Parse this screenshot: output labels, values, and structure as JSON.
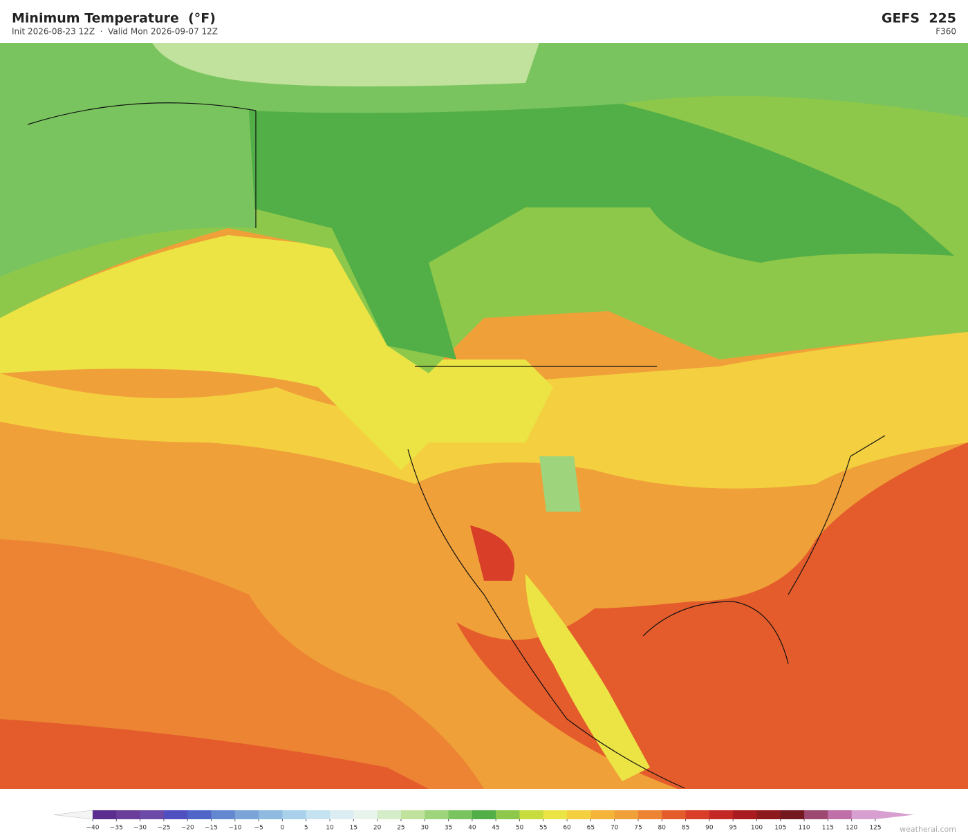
{
  "header": {
    "title": "Minimum Temperature  (°F)",
    "subtitle": "Init 2026-08-23 12Z  ·  Valid Mon 2026-09-07 12Z",
    "model": "GEFS  225",
    "forecast_hour": "F360"
  },
  "colorbar": {
    "ticks": [
      "−40",
      "−35",
      "−30",
      "−25",
      "−20",
      "−15",
      "−10",
      "−5",
      "0",
      "5",
      "10",
      "15",
      "20",
      "25",
      "30",
      "35",
      "40",
      "45",
      "50",
      "55",
      "60",
      "65",
      "70",
      "75",
      "80",
      "85",
      "90",
      "95",
      "100",
      "105",
      "110",
      "115",
      "120",
      "125"
    ],
    "colors": [
      "#5b2d8e",
      "#6a3d9a",
      "#6e4aa8",
      "#4f4fc0",
      "#4f66c8",
      "#6488d0",
      "#7ba4d8",
      "#8fbbe0",
      "#a8d0ea",
      "#c4e2f0",
      "#dcecf3",
      "#e8f3ec",
      "#d4ecc8",
      "#c0e29c",
      "#9ed47c",
      "#79c45e",
      "#52ae46",
      "#8dc84b",
      "#c8dc40",
      "#ece444",
      "#f4d040",
      "#f4b43a",
      "#f0a038",
      "#ec8434",
      "#e45c2c",
      "#d83e28",
      "#c42824",
      "#a81c20",
      "#8c1a1c",
      "#741820",
      "#9c4870",
      "#c070a8",
      "#d8a0d0"
    ],
    "under_color": "#f4f4f4",
    "over_color": "#d8a0d0"
  },
  "footer": {
    "credit": "weatherai.com"
  }
}
